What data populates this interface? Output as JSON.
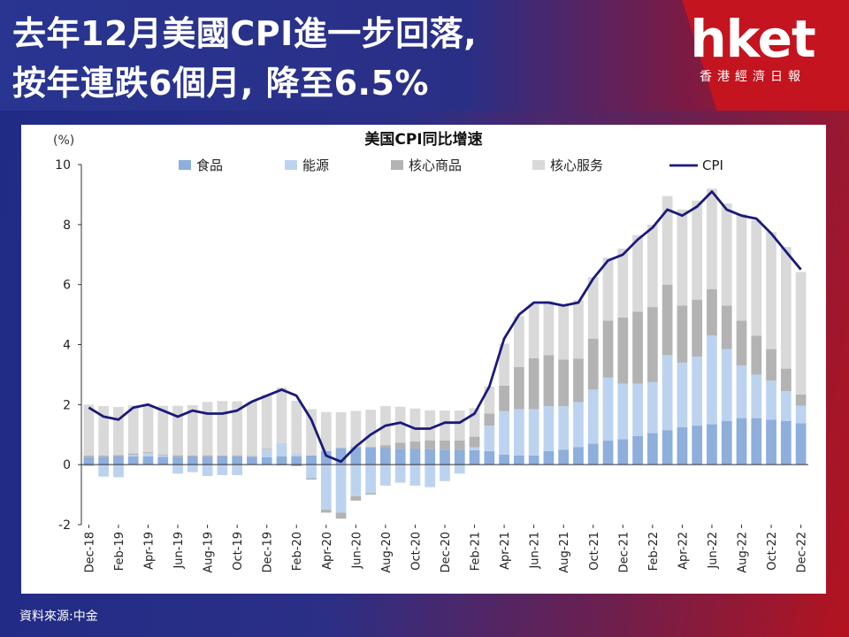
{
  "headline": {
    "line1": "去年12月美國CPI進一步回落,",
    "line2": "按年連跌6個月, 降至6.5%"
  },
  "logo": {
    "main": "hket",
    "sub": "香港經濟日報"
  },
  "source": "資料來源:中金",
  "colors": {
    "food": "#8eaedc",
    "energy": "#bcd3f0",
    "core_goods": "#b3b3b3",
    "core_services": "#d9d9d9",
    "cpi_line": "#1b1a7a",
    "red": "#c4141f"
  },
  "chart_data": {
    "type": "bar",
    "title": "美国CPI同比增速",
    "ylabel": "(%)",
    "ylim": [
      -2,
      10
    ],
    "yticks": [
      -2,
      0,
      2,
      4,
      6,
      8,
      10
    ],
    "legend_position": "top",
    "months": [
      "Dec-18",
      "Jan-19",
      "Feb-19",
      "Mar-19",
      "Apr-19",
      "May-19",
      "Jun-19",
      "Jul-19",
      "Aug-19",
      "Sep-19",
      "Oct-19",
      "Nov-19",
      "Dec-19",
      "Jan-20",
      "Feb-20",
      "Mar-20",
      "Apr-20",
      "May-20",
      "Jun-20",
      "Jul-20",
      "Aug-20",
      "Sep-20",
      "Oct-20",
      "Nov-20",
      "Dec-20",
      "Jan-21",
      "Feb-21",
      "Mar-21",
      "Apr-21",
      "May-21",
      "Jun-21",
      "Jul-21",
      "Aug-21",
      "Sep-21",
      "Oct-21",
      "Nov-21",
      "Dec-21",
      "Jan-22",
      "Feb-22",
      "Mar-22",
      "Apr-22",
      "May-22",
      "Jun-22",
      "Jul-22",
      "Aug-22",
      "Sep-22",
      "Oct-22",
      "Nov-22",
      "Dec-22"
    ],
    "tick_labels": [
      "Dec-18",
      "Feb-19",
      "Apr-19",
      "Jun-19",
      "Aug-19",
      "Oct-19",
      "Dec-19",
      "Feb-20",
      "Apr-20",
      "Jun-20",
      "Aug-20",
      "Oct-20",
      "Dec-20",
      "Feb-21",
      "Apr-21",
      "Jun-21",
      "Aug-21",
      "Oct-21",
      "Dec-21",
      "Feb-22",
      "Apr-22",
      "Jun-22",
      "Aug-22",
      "Oct-22",
      "Dec-22"
    ],
    "series": [
      {
        "name": "食品",
        "kind": "bar",
        "values": [
          0.25,
          0.25,
          0.27,
          0.27,
          0.27,
          0.26,
          0.26,
          0.27,
          0.26,
          0.27,
          0.28,
          0.27,
          0.25,
          0.27,
          0.28,
          0.3,
          0.45,
          0.55,
          0.59,
          0.58,
          0.55,
          0.53,
          0.52,
          0.51,
          0.5,
          0.5,
          0.48,
          0.45,
          0.33,
          0.3,
          0.3,
          0.45,
          0.5,
          0.58,
          0.7,
          0.8,
          0.85,
          0.95,
          1.05,
          1.15,
          1.25,
          1.3,
          1.35,
          1.45,
          1.55,
          1.55,
          1.5,
          1.45,
          1.38
        ]
      },
      {
        "name": "能源",
        "kind": "bar",
        "values": [
          -0.05,
          -0.4,
          -0.42,
          0.05,
          0.12,
          0.05,
          -0.3,
          -0.25,
          -0.38,
          -0.35,
          -0.35,
          0.0,
          0.25,
          0.45,
          0.1,
          -0.45,
          -1.5,
          -1.6,
          -1.05,
          -0.95,
          -0.7,
          -0.6,
          -0.7,
          -0.75,
          -0.55,
          -0.3,
          0.1,
          0.85,
          1.45,
          1.55,
          1.55,
          1.5,
          1.45,
          1.5,
          1.8,
          2.1,
          1.85,
          1.75,
          1.7,
          2.5,
          2.15,
          2.3,
          2.95,
          2.4,
          1.75,
          1.45,
          1.3,
          1.0,
          0.58
        ]
      },
      {
        "name": "核心商品",
        "kind": "bar",
        "values": [
          0.05,
          0.05,
          0.05,
          0.05,
          0.03,
          0.03,
          0.05,
          0.03,
          0.05,
          0.03,
          0.03,
          0.02,
          0.03,
          -0.02,
          -0.05,
          -0.05,
          -0.1,
          -0.2,
          -0.15,
          -0.05,
          0.1,
          0.2,
          0.25,
          0.3,
          0.3,
          0.3,
          0.35,
          0.4,
          0.85,
          1.4,
          1.7,
          1.7,
          1.55,
          1.45,
          1.7,
          1.9,
          2.2,
          2.4,
          2.5,
          2.35,
          1.9,
          1.9,
          1.55,
          1.45,
          1.5,
          1.3,
          1.05,
          0.75,
          0.38
        ]
      },
      {
        "name": "核心服务",
        "kind": "bar",
        "values": [
          1.7,
          1.65,
          1.6,
          1.6,
          1.58,
          1.62,
          1.65,
          1.68,
          1.78,
          1.82,
          1.8,
          1.82,
          1.8,
          1.85,
          1.75,
          1.55,
          1.3,
          1.2,
          1.2,
          1.25,
          1.3,
          1.2,
          1.1,
          1.0,
          1.0,
          1.0,
          0.95,
          0.9,
          1.4,
          1.7,
          1.8,
          1.8,
          1.85,
          1.95,
          2.05,
          2.1,
          2.3,
          2.55,
          2.75,
          2.95,
          3.2,
          3.3,
          3.35,
          3.4,
          3.55,
          3.85,
          3.9,
          4.05,
          4.08
        ]
      },
      {
        "name": "CPI",
        "kind": "line",
        "values": [
          1.9,
          1.6,
          1.5,
          1.9,
          2.0,
          1.8,
          1.6,
          1.8,
          1.7,
          1.7,
          1.8,
          2.1,
          2.3,
          2.5,
          2.3,
          1.5,
          0.3,
          0.1,
          0.6,
          1.0,
          1.3,
          1.4,
          1.2,
          1.2,
          1.4,
          1.4,
          1.7,
          2.6,
          4.2,
          5.0,
          5.4,
          5.4,
          5.3,
          5.4,
          6.2,
          6.8,
          7.0,
          7.5,
          7.9,
          8.5,
          8.3,
          8.6,
          9.1,
          8.5,
          8.3,
          8.2,
          7.7,
          7.1,
          6.5
        ]
      }
    ]
  }
}
